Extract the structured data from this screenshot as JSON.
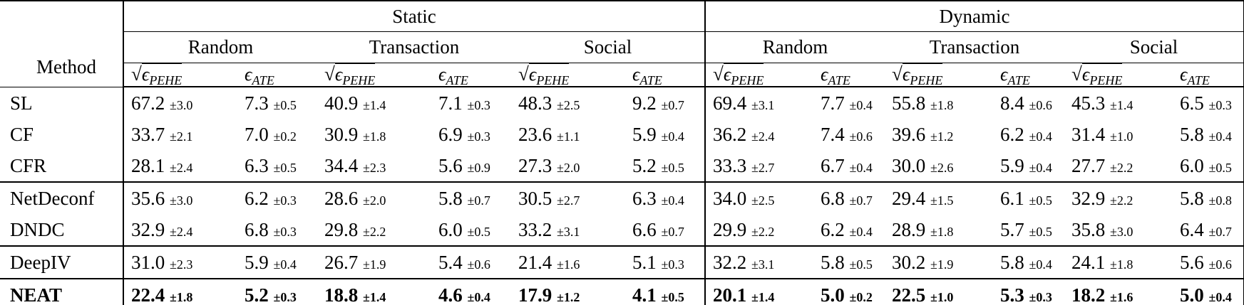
{
  "table": {
    "method_header": "Method",
    "top_groups": [
      "Static",
      "Dynamic"
    ],
    "sub_groups": [
      "Random",
      "Transaction",
      "Social",
      "Random",
      "Transaction",
      "Social"
    ],
    "metric_pehe": {
      "radical": "√",
      "symbol": "ϵ",
      "subscript": "PEHE"
    },
    "metric_ate": {
      "symbol": "ϵ",
      "subscript": "ATE"
    },
    "rows": [
      {
        "method": "SL",
        "bold": false,
        "sep_after": false,
        "cells": [
          {
            "v": "67.2",
            "e": "±3.0"
          },
          {
            "v": "7.3",
            "e": "±0.5"
          },
          {
            "v": "40.9",
            "e": "±1.4"
          },
          {
            "v": "7.1",
            "e": "±0.3"
          },
          {
            "v": "48.3",
            "e": "±2.5"
          },
          {
            "v": "9.2",
            "e": "±0.7"
          },
          {
            "v": "69.4",
            "e": "±3.1"
          },
          {
            "v": "7.7",
            "e": "±0.4"
          },
          {
            "v": "55.8",
            "e": "±1.8"
          },
          {
            "v": "8.4",
            "e": "±0.6"
          },
          {
            "v": "45.3",
            "e": "±1.4"
          },
          {
            "v": "6.5",
            "e": "±0.3"
          }
        ]
      },
      {
        "method": "CF",
        "bold": false,
        "sep_after": false,
        "cells": [
          {
            "v": "33.7",
            "e": "±2.1"
          },
          {
            "v": "7.0",
            "e": "±0.2"
          },
          {
            "v": "30.9",
            "e": "±1.8"
          },
          {
            "v": "6.9",
            "e": "±0.3"
          },
          {
            "v": "23.6",
            "e": "±1.1"
          },
          {
            "v": "5.9",
            "e": "±0.4"
          },
          {
            "v": "36.2",
            "e": "±2.4"
          },
          {
            "v": "7.4",
            "e": "±0.6"
          },
          {
            "v": "39.6",
            "e": "±1.2"
          },
          {
            "v": "6.2",
            "e": "±0.4"
          },
          {
            "v": "31.4",
            "e": "±1.0"
          },
          {
            "v": "5.8",
            "e": "±0.4"
          }
        ]
      },
      {
        "method": "CFR",
        "bold": false,
        "sep_after": true,
        "cells": [
          {
            "v": "28.1",
            "e": "±2.4"
          },
          {
            "v": "6.3",
            "e": "±0.5"
          },
          {
            "v": "34.4",
            "e": "±2.3"
          },
          {
            "v": "5.6",
            "e": "±0.9"
          },
          {
            "v": "27.3",
            "e": "±2.0"
          },
          {
            "v": "5.2",
            "e": "±0.5"
          },
          {
            "v": "33.3",
            "e": "±2.7"
          },
          {
            "v": "6.7",
            "e": "±0.4"
          },
          {
            "v": "30.0",
            "e": "±2.6"
          },
          {
            "v": "5.9",
            "e": "±0.4"
          },
          {
            "v": "27.7",
            "e": "±2.2"
          },
          {
            "v": "6.0",
            "e": "±0.5"
          }
        ]
      },
      {
        "method": "NetDeconf",
        "bold": false,
        "sep_after": false,
        "cells": [
          {
            "v": "35.6",
            "e": "±3.0"
          },
          {
            "v": "6.2",
            "e": "±0.3"
          },
          {
            "v": "28.6",
            "e": "±2.0"
          },
          {
            "v": "5.8",
            "e": "±0.7"
          },
          {
            "v": "30.5",
            "e": "±2.7"
          },
          {
            "v": "6.3",
            "e": "±0.4"
          },
          {
            "v": "34.0",
            "e": "±2.5"
          },
          {
            "v": "6.8",
            "e": "±0.7"
          },
          {
            "v": "29.4",
            "e": "±1.5"
          },
          {
            "v": "6.1",
            "e": "±0.5"
          },
          {
            "v": "32.9",
            "e": "±2.2"
          },
          {
            "v": "5.8",
            "e": "±0.8"
          }
        ]
      },
      {
        "method": "DNDC",
        "bold": false,
        "sep_after": true,
        "cells": [
          {
            "v": "32.9",
            "e": "±2.4"
          },
          {
            "v": "6.8",
            "e": "±0.3"
          },
          {
            "v": "29.8",
            "e": "±2.2"
          },
          {
            "v": "6.0",
            "e": "±0.5"
          },
          {
            "v": "33.2",
            "e": "±3.1"
          },
          {
            "v": "6.6",
            "e": "±0.7"
          },
          {
            "v": "29.9",
            "e": "±2.2"
          },
          {
            "v": "6.2",
            "e": "±0.4"
          },
          {
            "v": "28.9",
            "e": "±1.8"
          },
          {
            "v": "5.7",
            "e": "±0.5"
          },
          {
            "v": "35.8",
            "e": "±3.0"
          },
          {
            "v": "6.4",
            "e": "±0.7"
          }
        ]
      },
      {
        "method": "DeepIV",
        "bold": false,
        "sep_after": true,
        "cells": [
          {
            "v": "31.0",
            "e": "±2.3"
          },
          {
            "v": "5.9",
            "e": "±0.4"
          },
          {
            "v": "26.7",
            "e": "±1.9"
          },
          {
            "v": "5.4",
            "e": "±0.6"
          },
          {
            "v": "21.4",
            "e": "±1.6"
          },
          {
            "v": "5.1",
            "e": "±0.3"
          },
          {
            "v": "32.2",
            "e": "±3.1"
          },
          {
            "v": "5.8",
            "e": "±0.5"
          },
          {
            "v": "30.2",
            "e": "±1.9"
          },
          {
            "v": "5.8",
            "e": "±0.4"
          },
          {
            "v": "24.1",
            "e": "±1.8"
          },
          {
            "v": "5.6",
            "e": "±0.6"
          }
        ]
      },
      {
        "method": "NEAT",
        "bold": true,
        "sep_after": false,
        "cells": [
          {
            "v": "22.4",
            "e": "±1.8"
          },
          {
            "v": "5.2",
            "e": "±0.3"
          },
          {
            "v": "18.8",
            "e": "±1.4"
          },
          {
            "v": "4.6",
            "e": "±0.4"
          },
          {
            "v": "17.9",
            "e": "±1.2"
          },
          {
            "v": "4.1",
            "e": "±0.5"
          },
          {
            "v": "20.1",
            "e": "±1.4"
          },
          {
            "v": "5.0",
            "e": "±0.2"
          },
          {
            "v": "22.5",
            "e": "±1.0"
          },
          {
            "v": "5.3",
            "e": "±0.3"
          },
          {
            "v": "18.2",
            "e": "±1.6"
          },
          {
            "v": "5.0",
            "e": "±0.4"
          }
        ]
      }
    ]
  }
}
